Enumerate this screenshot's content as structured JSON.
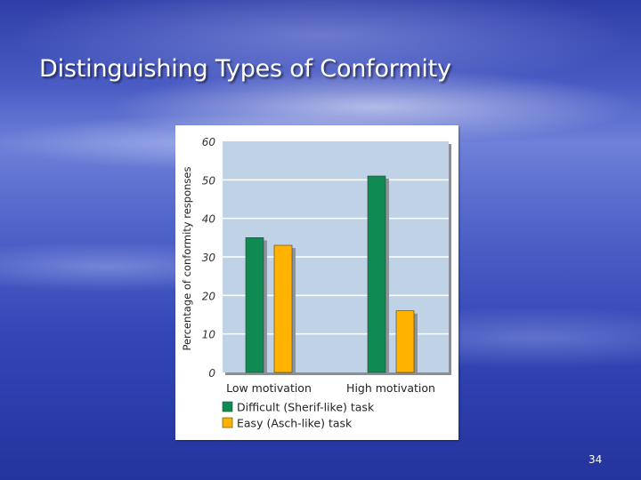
{
  "slide": {
    "title": "Distinguishing Types of Conformity",
    "page_number": "34"
  },
  "chart_data": {
    "type": "bar",
    "title": "",
    "xlabel": "",
    "ylabel": "Percentage of conformity responses",
    "categories": [
      "Low motivation",
      "High motivation"
    ],
    "series": [
      {
        "name": "Difficult (Sherif-like) task",
        "values": [
          35,
          51
        ],
        "color": "#0f8a52"
      },
      {
        "name": "Easy (Asch-like) task",
        "values": [
          33,
          16
        ],
        "color": "#ffb300"
      }
    ],
    "ylim": [
      0,
      60
    ],
    "yticks": [
      "0",
      "10",
      "20",
      "30",
      "40",
      "50",
      "60"
    ],
    "grid": true,
    "plot_background": "#c0d3e6",
    "legend_position": "bottom"
  }
}
